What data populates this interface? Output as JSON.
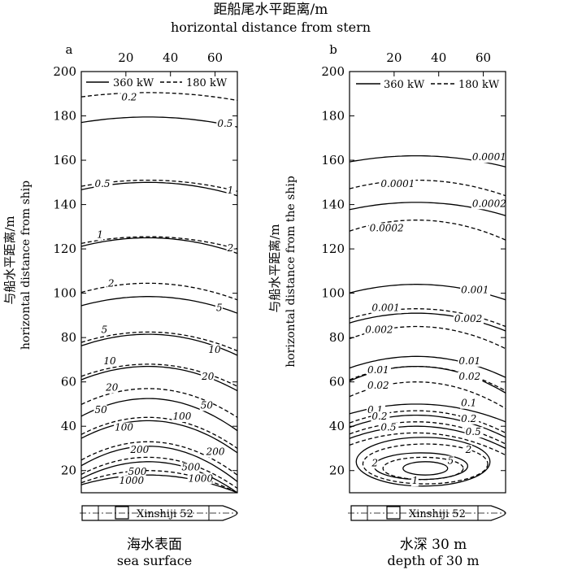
{
  "figure": {
    "title_cn": "距船尾水平距离/m",
    "title_en": "horizontal distance from stern"
  },
  "legend": {
    "solid_label": "360 kW",
    "dashed_label": "180 kW"
  },
  "ship": {
    "name": "Xinshiji 52"
  },
  "chart_data": [
    {
      "type": "contour",
      "panel": "a",
      "caption_cn": "海水表面",
      "caption_en": "sea surface",
      "ylabel_cn": "与船水平距离/m",
      "ylabel_en": "horizontal distance from ship",
      "xlim": [
        0,
        70
      ],
      "ylim": [
        10,
        200
      ],
      "xticks": [
        20,
        40,
        60
      ],
      "yticks": [
        20,
        40,
        60,
        80,
        100,
        120,
        140,
        160,
        180,
        200
      ],
      "series": [
        {
          "style": "dashed",
          "level": "0.2",
          "y_mid": 190.5,
          "y_right": 187
        },
        {
          "style": "solid",
          "level": "0.5",
          "y_mid": 179.5,
          "y_right": 175
        },
        {
          "style": "dashed",
          "level": "0.5",
          "y_mid": 151,
          "y_right": 146
        },
        {
          "style": "solid",
          "level": "1",
          "y_mid": 150,
          "y_right": 144
        },
        {
          "style": "dashed",
          "level": "1",
          "y_mid": 125.5,
          "y_right": 120
        },
        {
          "style": "solid",
          "level": "2",
          "y_mid": 125,
          "y_right": 118
        },
        {
          "style": "dashed",
          "level": "2",
          "y_mid": 104.5,
          "y_right": 97
        },
        {
          "style": "solid",
          "level": "5",
          "y_mid": 98.5,
          "y_right": 91
        },
        {
          "style": "dashed",
          "level": "5",
          "y_mid": 82.5,
          "y_right": 74
        },
        {
          "style": "solid",
          "level": "10",
          "y_mid": 81.5,
          "y_right": 72
        },
        {
          "style": "dashed",
          "level": "10",
          "y_mid": 68,
          "y_right": 58
        },
        {
          "style": "solid",
          "level": "20",
          "y_mid": 67,
          "y_right": 56
        },
        {
          "style": "dashed",
          "level": "20",
          "y_mid": 57,
          "y_right": 44
        },
        {
          "style": "solid",
          "level": "50",
          "y_mid": 52.5,
          "y_right": 38
        },
        {
          "style": "dashed",
          "level": "50",
          "y_mid": 44,
          "y_right": 30
        },
        {
          "style": "solid",
          "level": "100",
          "y_mid": 42.5,
          "y_right": 28
        },
        {
          "style": "dashed",
          "level": "100",
          "y_mid": 33,
          "y_right": 18
        },
        {
          "style": "solid",
          "level": "200",
          "y_mid": 31,
          "y_right": 15
        },
        {
          "style": "dashed",
          "level": "200",
          "y_mid": 26,
          "y_right": 12
        },
        {
          "style": "solid",
          "level": "500",
          "y_mid": 24,
          "y_right": 10
        },
        {
          "style": "dashed",
          "level": "1000",
          "y_mid": 20,
          "y_right": 10
        },
        {
          "style": "solid",
          "level": "1000",
          "y_mid": 18,
          "y_right": 10
        }
      ],
      "contour_labels": [
        {
          "text": "0.2",
          "x": 18,
          "y": 187
        },
        {
          "text": "0.5",
          "x": 61,
          "y": 175
        },
        {
          "text": "0.5",
          "x": 6,
          "y": 148
        },
        {
          "text": "1",
          "x": 65.5,
          "y": 145
        },
        {
          "text": "1",
          "x": 7,
          "y": 125
        },
        {
          "text": "2",
          "x": 65.5,
          "y": 119
        },
        {
          "text": "2",
          "x": 12,
          "y": 103
        },
        {
          "text": "5",
          "x": 60.5,
          "y": 92
        },
        {
          "text": "5",
          "x": 9,
          "y": 82
        },
        {
          "text": "10",
          "x": 57,
          "y": 73
        },
        {
          "text": "10",
          "x": 10,
          "y": 68
        },
        {
          "text": "20",
          "x": 54,
          "y": 61
        },
        {
          "text": "20",
          "x": 11,
          "y": 56
        },
        {
          "text": "50",
          "x": 53.5,
          "y": 48
        },
        {
          "text": "50",
          "x": 6,
          "y": 46
        },
        {
          "text": "100",
          "x": 41,
          "y": 43
        },
        {
          "text": "100",
          "x": 15,
          "y": 38
        },
        {
          "text": "200",
          "x": 56,
          "y": 27
        },
        {
          "text": "200",
          "x": 22,
          "y": 28
        },
        {
          "text": "500",
          "x": 45,
          "y": 20
        },
        {
          "text": "500",
          "x": 21,
          "y": 18
        },
        {
          "text": "1000",
          "x": 48,
          "y": 15
        },
        {
          "text": "1000",
          "x": 17,
          "y": 14
        }
      ]
    },
    {
      "type": "contour",
      "panel": "b",
      "caption_cn": "水深 30 m",
      "caption_en": "depth of 30 m",
      "ylabel_cn": "与船水平距离/m",
      "ylabel_en": "horizontal distance from the ship",
      "xlim": [
        0,
        70
      ],
      "ylim": [
        10,
        200
      ],
      "xticks": [
        20,
        40,
        60
      ],
      "yticks": [
        20,
        40,
        60,
        80,
        100,
        120,
        140,
        160,
        180,
        200
      ],
      "series": [
        {
          "style": "solid",
          "level": "0.0001",
          "y_mid": 162,
          "y_right": 157
        },
        {
          "style": "dashed",
          "level": "0.0001",
          "y_mid": 151,
          "y_right": 144
        },
        {
          "style": "solid",
          "level": "0.0002",
          "y_mid": 141,
          "y_right": 135
        },
        {
          "style": "dashed",
          "level": "0.0002",
          "y_mid": 133,
          "y_right": 124
        },
        {
          "style": "solid",
          "level": "0.001",
          "y_mid": 104,
          "y_right": 97
        },
        {
          "style": "dashed",
          "level": "0.001",
          "y_mid": 93,
          "y_right": 85
        },
        {
          "style": "solid",
          "level": "0.002",
          "y_mid": 91,
          "y_right": 83
        },
        {
          "style": "dashed",
          "level": "0.002",
          "y_mid": 85,
          "y_right": 75
        },
        {
          "style": "solid",
          "level": "0.01",
          "y_mid": 71.5,
          "y_right": 62
        },
        {
          "style": "dashed",
          "level": "0.01",
          "y_mid": 67,
          "y_right": 56
        },
        {
          "style": "solid",
          "level": "0.02",
          "y_mid": 67,
          "y_right": 55
        },
        {
          "style": "dashed",
          "level": "0.02",
          "y_mid": 60,
          "y_right": 48
        },
        {
          "style": "solid",
          "level": "0.1",
          "y_mid": 50,
          "y_right": 42
        },
        {
          "style": "dashed",
          "level": "0.1",
          "y_mid": 47,
          "y_right": 37
        },
        {
          "style": "solid",
          "level": "0.2",
          "y_mid": 45,
          "y_right": 35
        },
        {
          "style": "dashed",
          "level": "0.2",
          "y_mid": 42,
          "y_right": 32
        },
        {
          "style": "solid",
          "level": "0.5",
          "y_mid": 40,
          "y_right": 30
        },
        {
          "style": "dashed",
          "level": "0.5",
          "y_mid": 37,
          "y_right": 27
        }
      ],
      "inner_contours": [
        {
          "style": "solid",
          "level": "1",
          "cx": 33,
          "cy": 24,
          "rx": 30,
          "ry": 11
        },
        {
          "style": "dashed",
          "level": "1",
          "cx": 34,
          "cy": 23,
          "rx": 28,
          "ry": 9
        },
        {
          "style": "solid",
          "level": "2",
          "cx": 32,
          "cy": 22,
          "rx": 21,
          "ry": 6
        },
        {
          "style": "dashed",
          "level": "2",
          "cx": 33,
          "cy": 21,
          "rx": 18,
          "ry": 5
        },
        {
          "style": "solid",
          "level": "5",
          "cx": 34,
          "cy": 21,
          "rx": 10,
          "ry": 3
        }
      ],
      "contour_labels": [
        {
          "text": "0.0001",
          "x": 55,
          "y": 160
        },
        {
          "text": "0.0001",
          "x": 14,
          "y": 148
        },
        {
          "text": "0.0002",
          "x": 55,
          "y": 139
        },
        {
          "text": "0.0002",
          "x": 9,
          "y": 128
        },
        {
          "text": "0.001",
          "x": 50,
          "y": 100
        },
        {
          "text": "0.001",
          "x": 10,
          "y": 92
        },
        {
          "text": "0.002",
          "x": 47,
          "y": 87
        },
        {
          "text": "0.002",
          "x": 7,
          "y": 82
        },
        {
          "text": "0.01",
          "x": 49,
          "y": 68
        },
        {
          "text": "0.01",
          "x": 8,
          "y": 64
        },
        {
          "text": "0.02",
          "x": 49,
          "y": 61
        },
        {
          "text": "0.02",
          "x": 8,
          "y": 57
        },
        {
          "text": "0.1",
          "x": 50,
          "y": 49
        },
        {
          "text": "0.1",
          "x": 8,
          "y": 46
        },
        {
          "text": "0.2",
          "x": 50,
          "y": 42
        },
        {
          "text": "0.2",
          "x": 10,
          "y": 43
        },
        {
          "text": "0.5",
          "x": 14,
          "y": 38
        },
        {
          "text": "0.5",
          "x": 52,
          "y": 36
        },
        {
          "text": "2",
          "x": 52,
          "y": 28
        },
        {
          "text": "2",
          "x": 10,
          "y": 22
        },
        {
          "text": "5",
          "x": 44,
          "y": 23
        },
        {
          "text": "1",
          "x": 28,
          "y": 14
        }
      ]
    }
  ]
}
